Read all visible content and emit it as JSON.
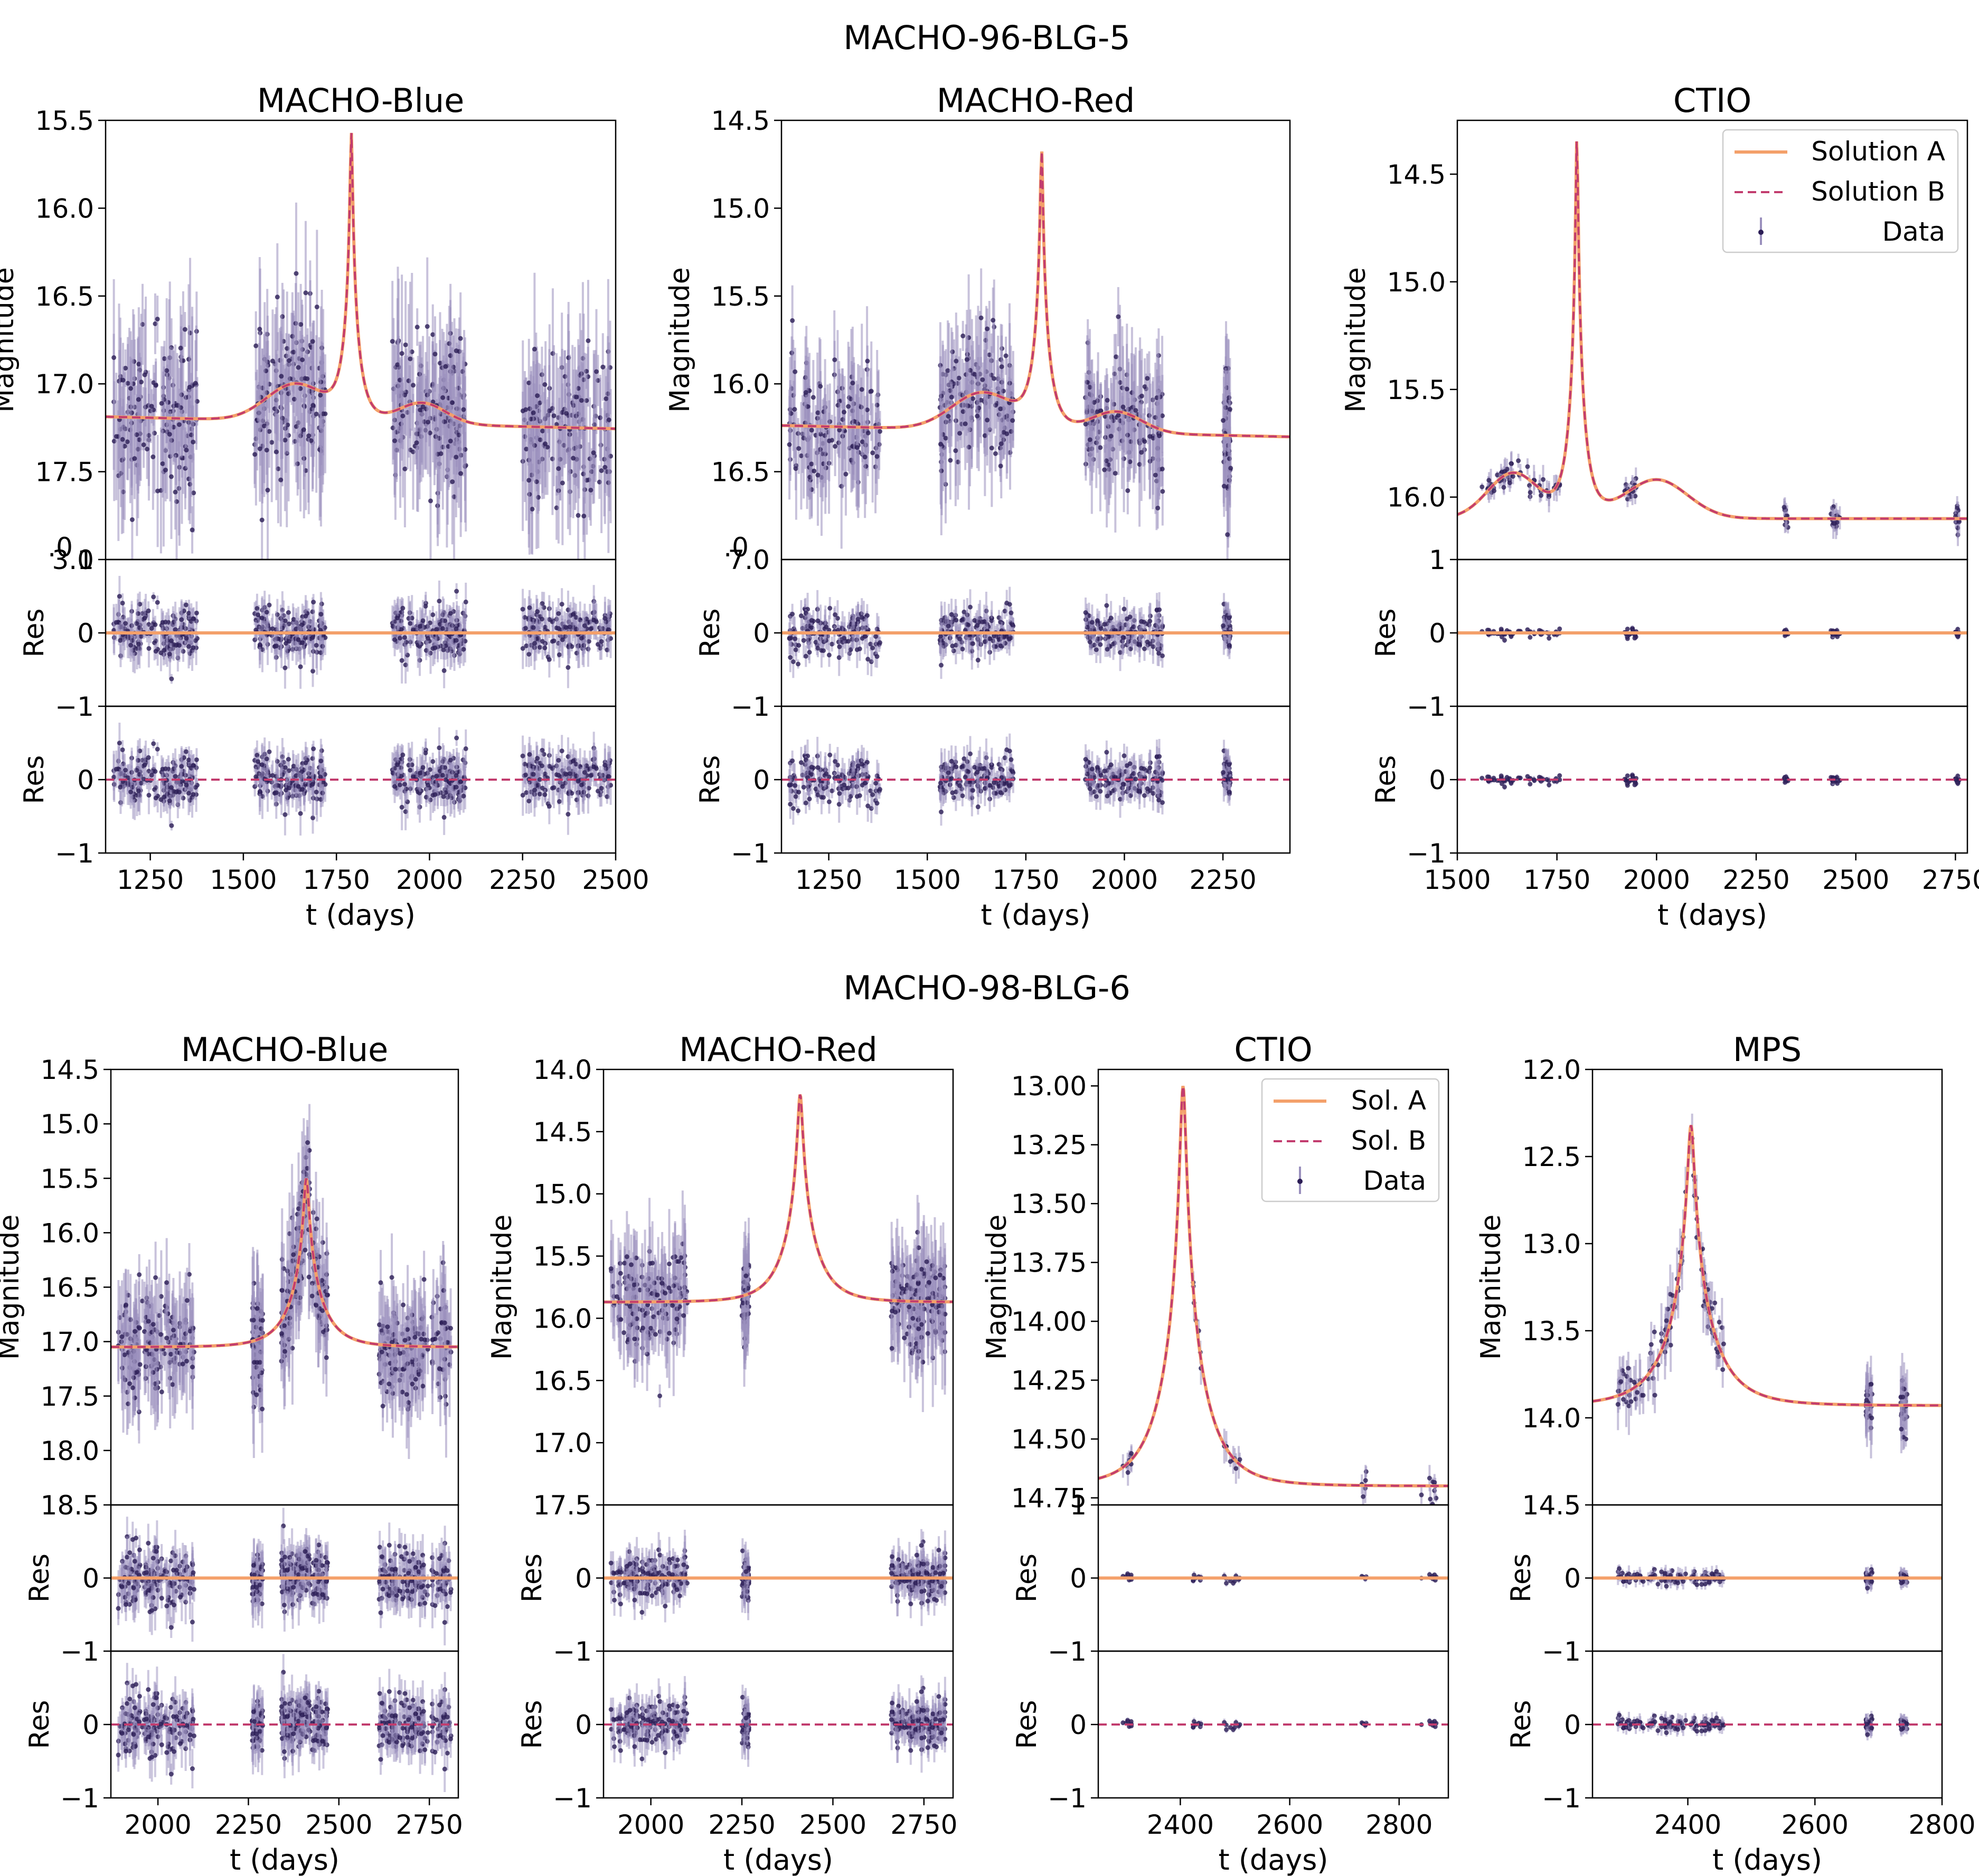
{
  "figure": {
    "colors": {
      "solution_a": "#f4a06a",
      "solution_b": "#c23c6e",
      "data": "#2b1d55",
      "error_bar": "#9a90bd",
      "axis": "#000000"
    }
  },
  "groups": [
    {
      "title": "MACHO-96-BLG-5"
    },
    {
      "title": "MACHO-98-BLG-6"
    }
  ],
  "chart_data": [
    {
      "type": "line",
      "group": 0,
      "title": "MACHO-Blue",
      "legend": null,
      "xlabel": "t (days)",
      "ylabel": "Magnitude",
      "res_ylabel": "Res",
      "xlim": [
        1130,
        2500
      ],
      "xticks": [
        1250,
        1500,
        1750,
        2000,
        2250,
        2500
      ],
      "ylim": [
        15.5,
        18.0
      ],
      "yticks": [
        15.5,
        16.0,
        16.5,
        17.0,
        17.5
      ],
      "y_overlap_labels": [
        ".0",
        "3.0"
      ],
      "res_top_yticks": [
        1,
        0,
        -1
      ],
      "res_bottom_yticks": [
        0,
        -1
      ],
      "model": {
        "t0": 1790,
        "peak": 15.6,
        "base": 17.22,
        "tE": 40,
        "slope": 5e-05,
        "bumps": [
          {
            "t": 1640,
            "w": 110,
            "a": 0.35
          },
          {
            "t": 1980,
            "w": 90,
            "a": 0.2
          }
        ]
      },
      "data_segments": [
        [
          1150,
          1380
        ],
        [
          1530,
          1720
        ],
        [
          1900,
          2100
        ],
        [
          2250,
          2490
        ]
      ],
      "scatter": 0.22,
      "error": 0.3,
      "n_per_segment": 150,
      "res_scatter": 0.18
    },
    {
      "type": "line",
      "group": 0,
      "title": "MACHO-Red",
      "legend": null,
      "xlabel": "t (days)",
      "ylabel": "Magnitude",
      "res_ylabel": "Res",
      "xlim": [
        1130,
        2420
      ],
      "xticks": [
        1250,
        1500,
        1750,
        2000,
        2250
      ],
      "ylim": [
        14.5,
        17.0
      ],
      "yticks": [
        14.5,
        15.0,
        15.5,
        16.0,
        16.5
      ],
      "y_overlap_labels": [
        ".0",
        "7.0"
      ],
      "res_top_yticks": [
        0,
        -1
      ],
      "res_bottom_yticks": [
        0,
        -1
      ],
      "model": {
        "t0": 1790,
        "peak": 14.7,
        "base": 16.27,
        "tE": 40,
        "slope": 5e-05,
        "bumps": [
          {
            "t": 1640,
            "w": 110,
            "a": 0.35
          },
          {
            "t": 1980,
            "w": 90,
            "a": 0.2
          }
        ]
      },
      "data_segments": [
        [
          1150,
          1380
        ],
        [
          1530,
          1720
        ],
        [
          1900,
          2100
        ],
        [
          2250,
          2270
        ]
      ],
      "scatter": 0.18,
      "error": 0.25,
      "n_per_segment": 140,
      "res_scatter": 0.15
    },
    {
      "type": "line",
      "group": 0,
      "title": "CTIO",
      "legend": {
        "position": "top-right",
        "labels": [
          "Solution A",
          "Solution B",
          "Data"
        ]
      },
      "xlabel": "t (days)",
      "ylabel": "Magnitude",
      "res_ylabel": "Res",
      "xlim": [
        1500,
        2780
      ],
      "xticks": [
        1500,
        1750,
        2000,
        2250,
        2500,
        2750
      ],
      "ylim": [
        14.25,
        16.29
      ],
      "yticks": [
        14.5,
        15.0,
        15.5,
        16.0
      ],
      "y_overlap_labels": [],
      "res_top_yticks": [
        1,
        0,
        -1
      ],
      "res_bottom_yticks": [
        0,
        -1
      ],
      "model": {
        "t0": 1800,
        "peak": 14.35,
        "base": 16.1,
        "tE": 38,
        "slope": 0,
        "bumps": [
          {
            "t": 1640,
            "w": 90,
            "a": 0.35
          },
          {
            "t": 2000,
            "w": 110,
            "a": 0.3
          }
        ]
      },
      "data_segments": [
        [
          1560,
          1760
        ],
        [
          1920,
          1950
        ],
        [
          2320,
          2330
        ],
        [
          2430,
          2460
        ],
        [
          2750,
          2760
        ]
      ],
      "scatter": 0.03,
      "error": 0.05,
      "n_per_segment": 50,
      "res_scatter": 0.03
    },
    {
      "type": "line",
      "group": 1,
      "title": "MACHO-Blue",
      "legend": null,
      "xlabel": "t (days)",
      "ylabel": "Magnitude",
      "res_ylabel": "Res",
      "xlim": [
        1870,
        2830
      ],
      "xticks": [
        2000,
        2250,
        2500,
        2750
      ],
      "ylim": [
        14.5,
        18.5
      ],
      "yticks": [
        14.5,
        15.0,
        15.5,
        16.0,
        16.5,
        17.0,
        17.5,
        18.0,
        18.5
      ],
      "y_overlap_labels": [],
      "res_top_yticks": [
        0,
        -1
      ],
      "res_bottom_yticks": [
        0,
        -1
      ],
      "model": {
        "t0": 2410,
        "peak": 15.5,
        "base": 17.05,
        "tE": 90,
        "slope": 0,
        "bumps": []
      },
      "data_segments": [
        [
          1890,
          2100
        ],
        [
          2260,
          2290
        ],
        [
          2340,
          2470
        ],
        [
          2610,
          2810
        ]
      ],
      "scatter": 0.25,
      "error": 0.35,
      "n_per_segment": 160,
      "res_scatter": 0.2
    },
    {
      "type": "line",
      "group": 1,
      "title": "MACHO-Red",
      "legend": null,
      "xlabel": "t (days)",
      "ylabel": "Magnitude",
      "res_ylabel": "Res",
      "xlim": [
        1870,
        2830
      ],
      "xticks": [
        2000,
        2250,
        2500,
        2750
      ],
      "ylim": [
        14.0,
        17.5
      ],
      "yticks": [
        14.0,
        14.5,
        15.0,
        15.5,
        16.0,
        16.5,
        17.0,
        17.5
      ],
      "y_overlap_labels": [],
      "res_top_yticks": [
        0,
        -1
      ],
      "res_bottom_yticks": [
        0,
        -1
      ],
      "model": {
        "t0": 2410,
        "peak": 14.2,
        "base": 15.87,
        "tE": 90,
        "slope": 0,
        "bumps": []
      },
      "data_segments": [
        [
          1890,
          2100
        ],
        [
          2250,
          2270
        ],
        [
          2660,
          2810
        ]
      ],
      "scatter": 0.2,
      "error": 0.3,
      "n_per_segment": 160,
      "res_scatter": 0.15
    },
    {
      "type": "line",
      "group": 1,
      "title": "CTIO",
      "legend": {
        "position": "top-right",
        "labels": [
          "Sol. A",
          "Sol. B",
          "Data"
        ]
      },
      "xlabel": "t (days)",
      "ylabel": "Magnitude",
      "res_ylabel": "Res",
      "xlim": [
        2250,
        2890
      ],
      "xticks": [
        2400,
        2600,
        2800
      ],
      "ylim": [
        12.93,
        14.78
      ],
      "yticks": [
        13.0,
        13.25,
        13.5,
        13.75,
        14.0,
        14.25,
        14.5,
        14.75
      ],
      "y_overlap_labels": [],
      "res_top_yticks": [
        1,
        0,
        -1
      ],
      "res_bottom_yticks": [
        0,
        -1
      ],
      "model": {
        "t0": 2405,
        "peak": 13.0,
        "base": 14.7,
        "tE": 75,
        "slope": 0,
        "bumps": []
      },
      "data_segments": [
        [
          2290,
          2320
        ],
        [
          2420,
          2440
        ],
        [
          2480,
          2510
        ],
        [
          2730,
          2740
        ],
        [
          2840,
          2870
        ]
      ],
      "scatter": 0.03,
      "error": 0.05,
      "n_per_segment": 25,
      "res_scatter": 0.03
    },
    {
      "type": "line",
      "group": 1,
      "title": "MPS",
      "legend": null,
      "xlabel": "t (days)",
      "ylabel": "Magnitude",
      "res_ylabel": "Res",
      "xlim": [
        2250,
        2800
      ],
      "xticks": [
        2400,
        2600,
        2800
      ],
      "ylim": [
        12.0,
        14.5
      ],
      "yticks": [
        12.0,
        12.5,
        13.0,
        13.5,
        14.0,
        14.5
      ],
      "y_overlap_labels": [],
      "res_top_yticks": [
        0,
        -1
      ],
      "res_bottom_yticks": [
        0,
        -1
      ],
      "model": {
        "t0": 2405,
        "peak": 12.32,
        "base": 13.93,
        "tE": 70,
        "slope": 0,
        "bumps": []
      },
      "data_segments": [
        [
          2290,
          2460
        ],
        [
          2680,
          2690
        ],
        [
          2735,
          2745
        ]
      ],
      "scatter": 0.07,
      "error": 0.12,
      "n_per_segment": 100,
      "res_scatter": 0.05
    }
  ]
}
